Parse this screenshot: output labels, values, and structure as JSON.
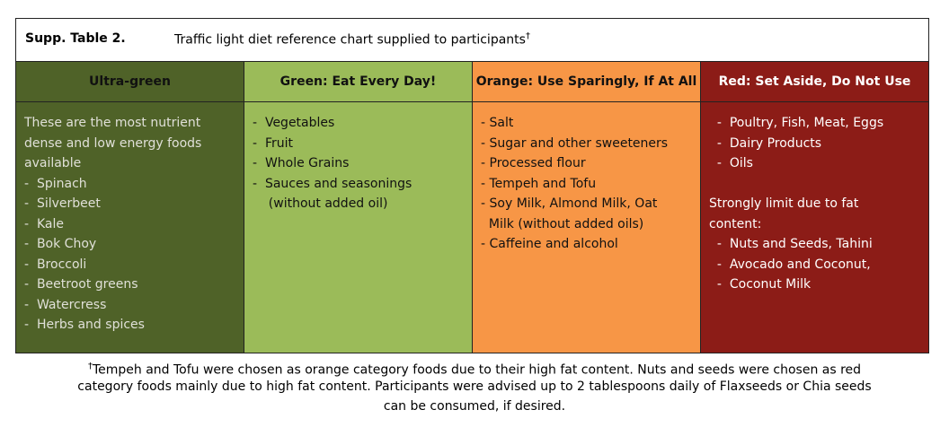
{
  "header": {
    "label": "Supp. Table 2.",
    "title": "Traffic light diet reference chart supplied to participants",
    "mark": "†"
  },
  "columns": [
    {
      "heading": "Ultra-green",
      "lines": [
        "These are the most nutrient",
        "dense and low energy foods",
        "available",
        "-  Spinach",
        "-  Silverbeet",
        "-  Kale",
        "-  Bok Choy",
        "-  Broccoli",
        "-  Beetroot greens",
        "-  Watercress",
        "-  Herbs and spices"
      ]
    },
    {
      "heading": "Green: Eat Every Day!",
      "lines": [
        "-  Vegetables",
        "-  Fruit",
        "-  Whole Grains",
        "-  Sauces and seasonings",
        "    (without added oil)"
      ]
    },
    {
      "heading": "Orange: Use Sparingly, If At All",
      "lines": [
        "- Salt",
        "- Sugar and other sweeteners",
        "- Processed flour",
        "- Tempeh and Tofu",
        "- Soy Milk, Almond Milk, Oat",
        "  Milk (without added oils)",
        "- Caffeine and alcohol"
      ]
    },
    {
      "heading": "Red: Set Aside, Do Not Use",
      "lines": [
        "  -  Poultry, Fish, Meat, Eggs",
        "  -  Dairy Products",
        "  -  Oils",
        "",
        "Strongly limit due to fat",
        "content:",
        "  -  Nuts and Seeds, Tahini",
        "  -  Avocado and Coconut,",
        "  -  Coconut Milk"
      ]
    }
  ],
  "footnote": {
    "mark": "†",
    "lines": [
      "Tempeh and Tofu were chosen as orange category foods due to their high fat content. Nuts and seeds were chosen as red",
      "category foods mainly due to high fat content. Participants were advised up to 2 tablespoons daily of Flaxseeds or Chia seeds",
      "can be consumed, if desired."
    ]
  }
}
